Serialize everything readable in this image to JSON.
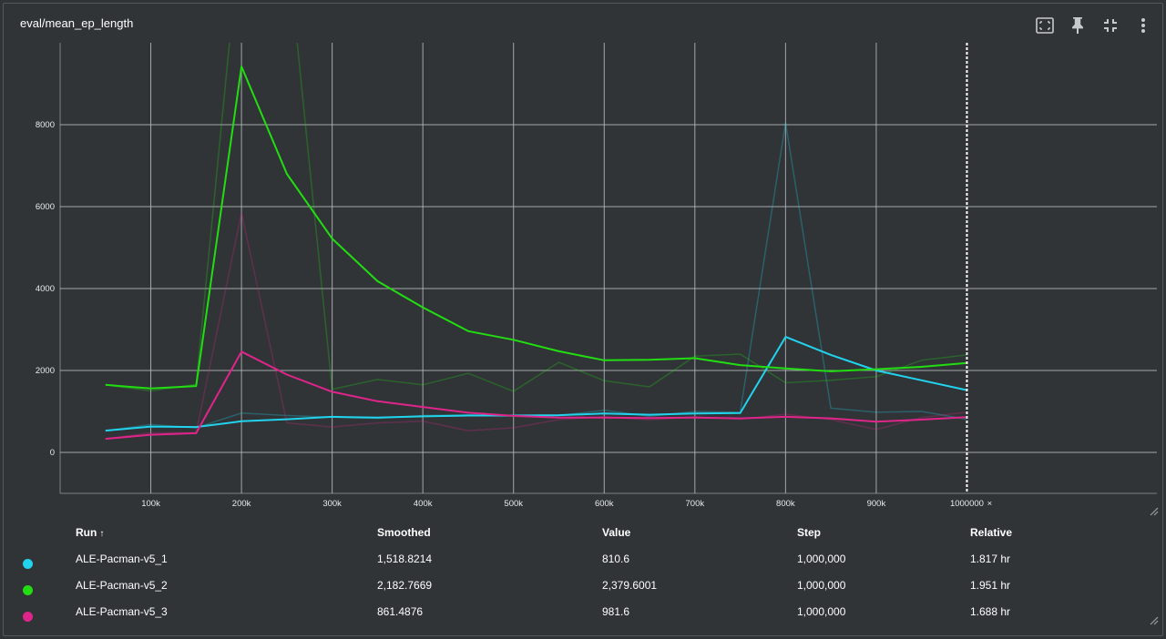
{
  "panel": {
    "title": "eval/mean_ep_length",
    "icons": [
      "fit-domain-icon",
      "pin-icon",
      "collapse-icon",
      "more-vert-icon"
    ]
  },
  "chart_data": {
    "type": "line",
    "xlim": [
      0,
      1100000
    ],
    "ylim": [
      -1000,
      10000
    ],
    "x_ticks": [
      100000,
      200000,
      300000,
      400000,
      500000,
      600000,
      700000,
      800000,
      900000
    ],
    "x_tick_labels": [
      "100k",
      "200k",
      "300k",
      "400k",
      "500k",
      "600k",
      "700k",
      "800k",
      "900k"
    ],
    "y_ticks": [
      0,
      2000,
      4000,
      6000,
      8000
    ],
    "y_tick_labels": [
      "0",
      "2000",
      "4000",
      "6000",
      "8000"
    ],
    "cursor_label": "1000000",
    "cursor_x": 1000000,
    "grid": true,
    "x": [
      50000,
      100000,
      150000,
      200000,
      250000,
      300000,
      350000,
      400000,
      450000,
      500000,
      550000,
      600000,
      650000,
      700000,
      750000,
      800000,
      850000,
      900000,
      950000,
      1000000
    ],
    "series": [
      {
        "name": "ALE-Pacman-v5_1",
        "color": "#22d3ee",
        "smoothed": [
          530,
          630,
          620,
          760,
          810,
          870,
          850,
          880,
          900,
          900,
          910,
          950,
          920,
          950,
          960,
          2820,
          2380,
          2000,
          1760,
          1519
        ],
        "raw": [
          530,
          680,
          600,
          960,
          900,
          860,
          830,
          900,
          920,
          880,
          900,
          1030,
          880,
          1000,
          980,
          8050,
          1080,
          980,
          1000,
          810
        ]
      },
      {
        "name": "ALE-Pacman-v5_2",
        "color": "#22dd11",
        "smoothed": [
          1650,
          1560,
          1620,
          9420,
          6800,
          5220,
          4180,
          3540,
          2960,
          2750,
          2470,
          2250,
          2260,
          2300,
          2130,
          2050,
          1980,
          2030,
          2090,
          2183
        ],
        "raw": [
          1650,
          1500,
          1660,
          13000,
          12500,
          1540,
          1780,
          1650,
          1930,
          1490,
          2200,
          1750,
          1600,
          2350,
          2400,
          1700,
          1760,
          1850,
          2250,
          2380
        ]
      },
      {
        "name": "ALE-Pacman-v5_3",
        "color": "#e0258a",
        "smoothed": [
          330,
          430,
          470,
          2460,
          1900,
          1480,
          1250,
          1110,
          970,
          890,
          850,
          850,
          840,
          850,
          830,
          870,
          830,
          750,
          800,
          861
        ],
        "raw": [
          330,
          480,
          480,
          5850,
          720,
          620,
          720,
          760,
          530,
          600,
          800,
          870,
          790,
          870,
          810,
          930,
          800,
          560,
          850,
          982
        ]
      }
    ]
  },
  "table": {
    "headers": {
      "run": "Run",
      "sort_indicator": "↑",
      "smoothed": "Smoothed",
      "value": "Value",
      "step": "Step",
      "relative": "Relative"
    },
    "rows": [
      {
        "run": "ALE-Pacman-v5_1",
        "smoothed": "1,518.8214",
        "value": "810.6",
        "step": "1,000,000",
        "relative": "1.817 hr",
        "color": "#22d3ee"
      },
      {
        "run": "ALE-Pacman-v5_2",
        "smoothed": "2,182.7669",
        "value": "2,379.6001",
        "step": "1,000,000",
        "relative": "1.951 hr",
        "color": "#22dd11"
      },
      {
        "run": "ALE-Pacman-v5_3",
        "smoothed": "861.4876",
        "value": "981.6",
        "step": "1,000,000",
        "relative": "1.688 hr",
        "color": "#e0258a"
      }
    ]
  }
}
